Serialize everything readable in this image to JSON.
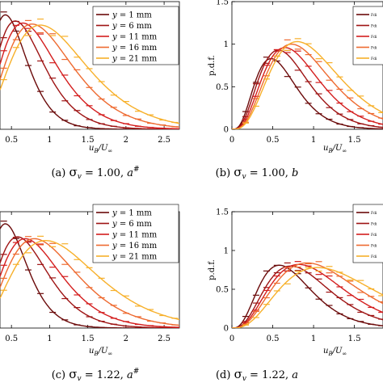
{
  "figure": {
    "legend_entries": [
      "y = 1 mm",
      "y = 6 mm",
      "y = 11 mm",
      "y = 16 mm",
      "y = 21 mm"
    ],
    "series_colors": [
      "#6b0a0a",
      "#9e1414",
      "#d41e1e",
      "#ee6a30",
      "#f7b02a"
    ]
  },
  "chart_data": [
    {
      "id": "a",
      "type": "line",
      "caption": {
        "label": "(a)",
        "sigma": "σ",
        "sub": "v",
        "eq": " = 1.00,",
        "variant": "a",
        "sup": "#"
      },
      "xlabel": {
        "main": "u",
        "sub": "B",
        "slash": "/U",
        "sub2": "∞"
      },
      "ylabel": "",
      "xlim": [
        0.35,
        2.7
      ],
      "ylim": [
        0,
        1.25
      ],
      "xticks": [
        "0.5",
        "1",
        "1.5",
        "2",
        "2.5"
      ],
      "yticks": [],
      "legend": {
        "position": "top-right",
        "entries": [
          "y = 1 mm",
          "y = 6 mm",
          "y = 11 mm",
          "y = 16 mm",
          "y = 21 mm"
        ]
      },
      "series": [
        {
          "name": "y = 1 mm",
          "mode": 0.42,
          "peak": 1.12,
          "spread": 0.45
        },
        {
          "name": "y = 6 mm",
          "mode": 0.55,
          "peak": 1.06,
          "spread": 0.46
        },
        {
          "name": "y = 11 mm",
          "mode": 0.65,
          "peak": 1.04,
          "spread": 0.47
        },
        {
          "name": "y = 16 mm",
          "mode": 0.77,
          "peak": 1.03,
          "spread": 0.48
        },
        {
          "name": "y = 21 mm",
          "mode": 0.88,
          "peak": 1.02,
          "spread": 0.49
        }
      ]
    },
    {
      "id": "b",
      "type": "line",
      "caption": {
        "label": "(b)",
        "sigma": "σ",
        "sub": "v",
        "eq": " = 1.00,",
        "variant": "b",
        "sup": ""
      },
      "xlabel": {
        "main": "u",
        "sub": "B",
        "slash": "/U",
        "sub2": "∞"
      },
      "ylabel": "p.d.f.",
      "xlim": [
        0,
        1.85
      ],
      "ylim": [
        0,
        1.5
      ],
      "xticks": [
        "0",
        "0.5",
        "1",
        "1.5"
      ],
      "yticks": [
        "0",
        "0.5",
        "1",
        "1.5"
      ],
      "legend": {
        "position": "top-right",
        "entries": [
          "Fdi",
          "Fdi",
          "Fdi",
          "Fdi",
          "Fdi"
        ]
      },
      "series": [
        {
          "name": "1",
          "mode": 0.48,
          "peak": 0.83,
          "spread": 0.4
        },
        {
          "name": "2",
          "mode": 0.57,
          "peak": 0.93,
          "spread": 0.4
        },
        {
          "name": "3",
          "mode": 0.65,
          "peak": 0.96,
          "spread": 0.4
        },
        {
          "name": "4",
          "mode": 0.73,
          "peak": 1.0,
          "spread": 0.4
        },
        {
          "name": "5",
          "mode": 0.8,
          "peak": 1.03,
          "spread": 0.4
        }
      ]
    },
    {
      "id": "c",
      "type": "line",
      "caption": {
        "label": "(c)",
        "sigma": "σ",
        "sub": "v",
        "eq": " = 1.22,",
        "variant": "a",
        "sup": "#"
      },
      "xlabel": {
        "main": "u",
        "sub": "B",
        "slash": "/U",
        "sub2": "∞"
      },
      "ylabel": "",
      "xlim": [
        0.35,
        2.7
      ],
      "ylim": [
        0,
        1.25
      ],
      "xticks": [
        "0.5",
        "1",
        "1.5",
        "2",
        "2.5"
      ],
      "yticks": [],
      "legend": {
        "position": "top-right",
        "entries": [
          "y = 1 mm",
          "y = 6 mm",
          "y = 11 mm",
          "y = 16 mm",
          "y = 21 mm"
        ]
      },
      "series": [
        {
          "name": "y = 1 mm",
          "mode": 0.42,
          "peak": 1.12,
          "spread": 0.45
        },
        {
          "name": "y = 6 mm",
          "mode": 0.58,
          "peak": 0.98,
          "spread": 0.47
        },
        {
          "name": "y = 11 mm",
          "mode": 0.68,
          "peak": 0.96,
          "spread": 0.48
        },
        {
          "name": "y = 16 mm",
          "mode": 0.8,
          "peak": 0.96,
          "spread": 0.5
        },
        {
          "name": "y = 21 mm",
          "mode": 0.95,
          "peak": 0.94,
          "spread": 0.52
        }
      ]
    },
    {
      "id": "d",
      "type": "line",
      "caption": {
        "label": "(d)",
        "sigma": "σ",
        "sub": "v",
        "eq": " = 1.22,",
        "variant": "a",
        "sup": ""
      },
      "xlabel": {
        "main": "u",
        "sub": "B",
        "slash": "/U",
        "sub2": "∞"
      },
      "ylabel": "p.d.f.",
      "xlim": [
        0,
        1.85
      ],
      "ylim": [
        0,
        1.5
      ],
      "xticks": [
        "0",
        "0.5",
        "1",
        "1.5"
      ],
      "yticks": [
        "0",
        "0.5",
        "1",
        "1.5"
      ],
      "legend": {
        "position": "top-right",
        "entries": [
          "Fdi",
          "Fdi",
          "Fdi",
          "Fdi",
          "Fdi"
        ]
      },
      "series": [
        {
          "name": "1",
          "mode": 0.58,
          "peak": 0.81,
          "spread": 0.45
        },
        {
          "name": "2",
          "mode": 0.72,
          "peak": 0.8,
          "spread": 0.45
        },
        {
          "name": "3",
          "mode": 0.82,
          "peak": 0.82,
          "spread": 0.46
        },
        {
          "name": "4",
          "mode": 0.92,
          "peak": 0.84,
          "spread": 0.47
        },
        {
          "name": "5",
          "mode": 1.05,
          "peak": 0.78,
          "spread": 0.48
        }
      ]
    }
  ]
}
